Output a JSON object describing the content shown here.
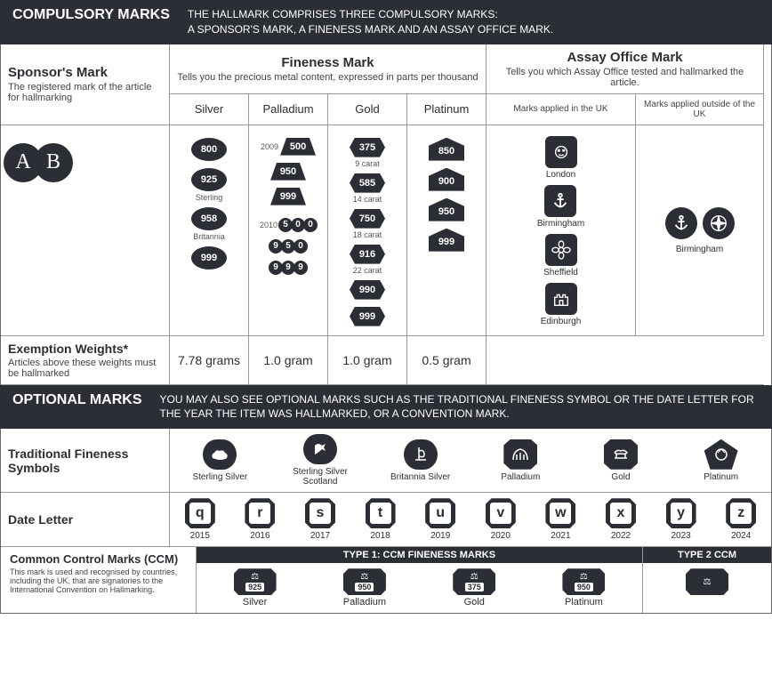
{
  "colors": {
    "dark": "#2b2e34",
    "text": "#2b2e34",
    "border": "#999"
  },
  "compulsory": {
    "header_title": "COMPULSORY MARKS",
    "header_sub1": "THE HALLMARK COMPRISES THREE COMPULSORY MARKS:",
    "header_sub2": "A SPONSOR'S MARK, A FINENESS MARK AND AN ASSAY OFFICE MARK.",
    "sponsor_title": "Sponsor's Mark",
    "sponsor_sub": "The registered mark of the article for hallmarking",
    "sponsor_logo": "A B",
    "fineness_title": "Fineness Mark",
    "fineness_sub": "Tells you the precious metal content, expressed in parts per thousand",
    "assay_title": "Assay Office Mark",
    "assay_sub": "Tells you which Assay Office tested and hallmarked the article.",
    "cols": {
      "silver": "Silver",
      "palladium": "Palladium",
      "gold": "Gold",
      "platinum": "Platinum",
      "uk": "Marks applied in the UK",
      "non_uk": "Marks applied outside of the UK"
    },
    "silver": [
      {
        "v": "800"
      },
      {
        "v": "925",
        "label": "Sterling"
      },
      {
        "v": "958",
        "label": "Britannia"
      },
      {
        "v": "999"
      }
    ],
    "palladium_2009_label": "2009",
    "palladium_2009": [
      "500",
      "950",
      "999"
    ],
    "palladium_2010_label": "2010",
    "palladium_2010": [
      "500",
      "950",
      "999"
    ],
    "gold": [
      {
        "v": "375",
        "label": "9 carat"
      },
      {
        "v": "585",
        "label": "14 carat"
      },
      {
        "v": "750",
        "label": "18 carat"
      },
      {
        "v": "916",
        "label": "22 carat"
      },
      {
        "v": "990"
      },
      {
        "v": "999"
      }
    ],
    "platinum": [
      "850",
      "900",
      "950",
      "999"
    ],
    "assay_uk": [
      "London",
      "Birmingham",
      "Sheffield",
      "Edinburgh"
    ],
    "assay_non_uk": "Birmingham",
    "exemption_title": "Exemption Weights*",
    "exemption_sub": "Articles above these weights must be hallmarked",
    "exemption": {
      "silver": "7.78 grams",
      "palladium": "1.0 gram",
      "gold": "1.0 gram",
      "platinum": "0.5 gram"
    }
  },
  "optional": {
    "header_title": "OPTIONAL MARKS",
    "header_sub": "YOU MAY ALSO SEE OPTIONAL MARKS SUCH AS THE TRADITIONAL FINENESS SYMBOL OR THE DATE LETTER FOR THE YEAR THE ITEM WAS HALLMARKED, OR A CONVENTION MARK.",
    "tfs_title": "Traditional Fineness Symbols",
    "tfs": [
      {
        "label": "Sterling Silver",
        "shape": "oval"
      },
      {
        "label": "Sterling Silver Scotland",
        "shape": "oval"
      },
      {
        "label": "Britannia Silver",
        "shape": "oval"
      },
      {
        "label": "Palladium",
        "shape": "clip"
      },
      {
        "label": "Gold",
        "shape": "clip"
      },
      {
        "label": "Platinum",
        "shape": "pent"
      }
    ],
    "dateletter_title": "Date Letter",
    "dateletters": [
      {
        "l": "q",
        "y": "2015"
      },
      {
        "l": "r",
        "y": "2016"
      },
      {
        "l": "s",
        "y": "2017"
      },
      {
        "l": "t",
        "y": "2018"
      },
      {
        "l": "u",
        "y": "2019"
      },
      {
        "l": "v",
        "y": "2020"
      },
      {
        "l": "w",
        "y": "2021"
      },
      {
        "l": "x",
        "y": "2022"
      },
      {
        "l": "y",
        "y": "2023"
      },
      {
        "l": "z",
        "y": "2024"
      }
    ],
    "ccm_title": "Common Control Marks (CCM)",
    "ccm_sub": "This mark is used and recognised by countries, including the UK, that are signatories to the International Convention on Hallmarking.",
    "ccm_type1": "TYPE 1: CCM FINENESS MARKS",
    "ccm_type2": "TYPE 2 CCM",
    "ccm_items": [
      {
        "n": "925",
        "label": "Silver"
      },
      {
        "n": "950",
        "label": "Palladium"
      },
      {
        "n": "375",
        "label": "Gold"
      },
      {
        "n": "950",
        "label": "Platinum"
      }
    ]
  }
}
